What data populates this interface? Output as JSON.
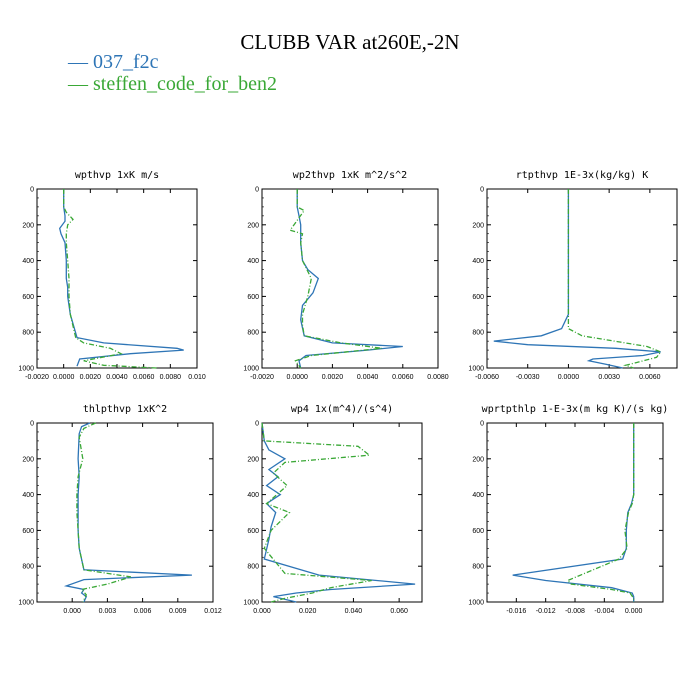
{
  "title": "CLUBB VAR at260E,-2N",
  "legend": [
    {
      "label": "037_f2c",
      "color": "#2e75b6"
    },
    {
      "label": "steffen_code_for_ben2",
      "color": "#3aa836"
    }
  ],
  "chart_data": [
    {
      "type": "line",
      "title": "wpthvp  1xK m/s",
      "xlim": [
        -0.002,
        0.01
      ],
      "ylim": [
        0,
        1000
      ],
      "xticks": [
        "-0.0020",
        "0.0000",
        "0.0020",
        "0.0040",
        "0.0060",
        "0.0080",
        "0.010"
      ],
      "xtick_values": [
        -0.002,
        0,
        0.002,
        0.004,
        0.006,
        0.008,
        0.01
      ],
      "yticks": [
        "0",
        "200",
        "400",
        "600",
        "800",
        "1000"
      ],
      "series": [
        {
          "x": [
            0,
            0,
            0.0001,
            0.0001,
            -0.0003,
            -0.0002,
            0.0001,
            0.0002,
            0.0002,
            0.0003,
            0.0003,
            0.0005,
            0.001,
            0.003,
            0.0085,
            0.009,
            0.005,
            0.0012,
            0.001
          ],
          "y": [
            0,
            100,
            150,
            180,
            220,
            250,
            300,
            400,
            500,
            550,
            600,
            700,
            830,
            860,
            890,
            900,
            920,
            950,
            990
          ]
        },
        {
          "x": [
            0,
            0,
            0.0002,
            0.0007,
            0.0003,
            0.0002,
            0.0002,
            0.0003,
            0.0004,
            0.0004,
            0.0004,
            0.0005,
            0.0009,
            0.0015,
            0.0035,
            0.0043,
            0.0015,
            0.003,
            0.007
          ],
          "y": [
            0,
            100,
            130,
            170,
            200,
            250,
            300,
            400,
            500,
            550,
            600,
            700,
            830,
            860,
            890,
            920,
            960,
            985,
            1000
          ]
        }
      ]
    },
    {
      "type": "line",
      "title": "wp2thvp  1xK m^2/s^2",
      "xlim": [
        -0.002,
        0.008
      ],
      "ylim": [
        0,
        1000
      ],
      "xticks": [
        "-0.0020",
        "0.0000",
        "0.0020",
        "0.0040",
        "0.0060",
        "0.0080"
      ],
      "xtick_values": [
        -0.002,
        0,
        0.002,
        0.004,
        0.006,
        0.008
      ],
      "yticks": [
        "0",
        "200",
        "400",
        "600",
        "800",
        "1000"
      ],
      "series": [
        {
          "x": [
            0,
            0,
            0.0001,
            0.0002,
            0.0002,
            0.0003,
            0.0006,
            0.0012,
            0.0009,
            0.0003,
            0.0002,
            0.0004,
            0.002,
            0.006,
            0.004,
            0.0005,
            0.0001,
            0.0002
          ],
          "y": [
            0,
            100,
            150,
            200,
            300,
            400,
            450,
            500,
            580,
            650,
            730,
            820,
            860,
            880,
            900,
            930,
            960,
            1000
          ]
        },
        {
          "x": [
            0,
            0,
            0.0004,
            -0.0004,
            0.0003,
            0.0002,
            0.0003,
            0.0008,
            0.0006,
            0.0003,
            0.0003,
            0.0004,
            0.0025,
            0.0048,
            0.0008,
            -0.0001,
            0.0002
          ],
          "y": [
            0,
            100,
            120,
            230,
            250,
            300,
            400,
            500,
            600,
            700,
            760,
            820,
            860,
            890,
            930,
            960,
            1000
          ]
        }
      ]
    },
    {
      "type": "line",
      "title": "rtpthvp  1E-3x(kg/kg) K",
      "xlim": [
        -0.006,
        0.008
      ],
      "ylim": [
        0,
        1000
      ],
      "xticks": [
        "-0.0060",
        "-0.0030",
        "0.0000",
        "0.0030",
        "0.0060"
      ],
      "xtick_values": [
        -0.006,
        -0.003,
        0,
        0.003,
        0.006
      ],
      "yticks": [
        "0",
        "200",
        "400",
        "600",
        "800",
        "1000"
      ],
      "series": [
        {
          "x": [
            0,
            0,
            0,
            0,
            0,
            0,
            0,
            -0.0005,
            -0.002,
            -0.0055,
            -0.003,
            0.0035,
            0.0068,
            0.0055,
            0.0018,
            0.0015,
            0.0028,
            0.004
          ],
          "y": [
            0,
            100,
            200,
            300,
            400,
            500,
            700,
            780,
            820,
            850,
            870,
            890,
            910,
            930,
            950,
            960,
            980,
            1000
          ]
        },
        {
          "x": [
            0,
            0,
            0,
            0,
            0,
            0,
            0,
            0,
            0.001,
            0.0058,
            0.0068,
            0.0065,
            0.005,
            0.0042,
            0.0048
          ],
          "y": [
            0,
            100,
            200,
            300,
            400,
            500,
            700,
            780,
            820,
            880,
            910,
            940,
            970,
            985,
            1000
          ]
        }
      ]
    },
    {
      "type": "line",
      "title": "thlpthvp  1xK^2",
      "xlim": [
        -0.003,
        0.012
      ],
      "ylim": [
        0,
        1000
      ],
      "xticks": [
        "0.000",
        "0.003",
        "0.006",
        "0.009",
        "0.012"
      ],
      "xtick_values": [
        0,
        0.003,
        0.006,
        0.009,
        0.012
      ],
      "yticks": [
        "0",
        "200",
        "400",
        "600",
        "800",
        "1000"
      ],
      "series": [
        {
          "x": [
            0.0015,
            0.0008,
            0.0006,
            0.0005,
            0.0006,
            0.0005,
            0.0005,
            0.0005,
            0.0006,
            0.001,
            0.0102,
            0.001,
            -0.0005,
            0.001,
            0.0008,
            0.0012,
            0.001
          ],
          "y": [
            0,
            20,
            60,
            200,
            300,
            400,
            500,
            600,
            700,
            820,
            850,
            875,
            910,
            930,
            950,
            970,
            1000
          ]
        },
        {
          "x": [
            0.002,
            0.001,
            0.0006,
            0.0009,
            0.0005,
            0.0004,
            0.0004,
            0.0005,
            0.0006,
            0.001,
            0.005,
            0.003,
            0.0008,
            0.0012,
            0.0009
          ],
          "y": [
            0,
            30,
            80,
            200,
            300,
            400,
            500,
            600,
            700,
            820,
            860,
            900,
            930,
            960,
            1000
          ]
        }
      ]
    },
    {
      "type": "line",
      "title": "wp4  1x(m^4)/(s^4)",
      "xlim": [
        0,
        0.07
      ],
      "ylim": [
        0,
        1000
      ],
      "xticks": [
        "0.000",
        "0.020",
        "0.040",
        "0.060"
      ],
      "xtick_values": [
        0,
        0.02,
        0.04,
        0.06
      ],
      "yticks": [
        "0",
        "200",
        "400",
        "600",
        "800",
        "1000"
      ],
      "series": [
        {
          "x": [
            0,
            0.001,
            0.003,
            0.01,
            0.003,
            0.007,
            0.002,
            0.008,
            0.002,
            0.006,
            0.004,
            0.003,
            0.001,
            0.025,
            0.067,
            0.03,
            0.015,
            0.005,
            0.015
          ],
          "y": [
            0,
            100,
            150,
            200,
            260,
            300,
            350,
            400,
            450,
            500,
            580,
            650,
            760,
            850,
            900,
            930,
            950,
            970,
            1000
          ]
        },
        {
          "x": [
            0,
            0.001,
            0.042,
            0.047,
            0.01,
            0.005,
            0.011,
            0.002,
            0.012,
            0.004,
            0.001,
            0.01,
            0.048,
            0.03,
            0.022,
            0.01,
            0.004
          ],
          "y": [
            0,
            100,
            130,
            180,
            220,
            280,
            350,
            450,
            500,
            600,
            700,
            840,
            880,
            920,
            950,
            980,
            1000
          ]
        }
      ]
    },
    {
      "type": "line",
      "title": "wprtpthlp  1-E-3x(m kg K)/(s kg)",
      "xlim": [
        -0.02,
        0.004
      ],
      "ylim": [
        0,
        1000
      ],
      "xticks": [
        "-0.016",
        "-0.012",
        "-0.008",
        "-0.004",
        "0.000"
      ],
      "xtick_values": [
        -0.016,
        -0.012,
        -0.008,
        -0.004,
        0
      ],
      "yticks": [
        "0",
        "200",
        "400",
        "600",
        "800",
        "1000"
      ],
      "series": [
        {
          "x": [
            0,
            0,
            0,
            0,
            -0.0003,
            -0.0008,
            -0.001,
            -0.001,
            -0.0015,
            -0.0165,
            -0.012,
            -0.003,
            -0.0002,
            0,
            0
          ],
          "y": [
            0,
            100,
            200,
            400,
            450,
            500,
            600,
            700,
            760,
            850,
            880,
            920,
            950,
            970,
            1000
          ]
        },
        {
          "x": [
            0,
            0,
            0,
            0,
            -0.0002,
            -0.0007,
            -0.0012,
            -0.0009,
            -0.002,
            -0.009,
            -0.0085,
            -0.003,
            -0.0005,
            0,
            0
          ],
          "y": [
            0,
            100,
            200,
            400,
            450,
            500,
            600,
            700,
            760,
            880,
            900,
            930,
            950,
            980,
            1000
          ]
        }
      ]
    }
  ]
}
